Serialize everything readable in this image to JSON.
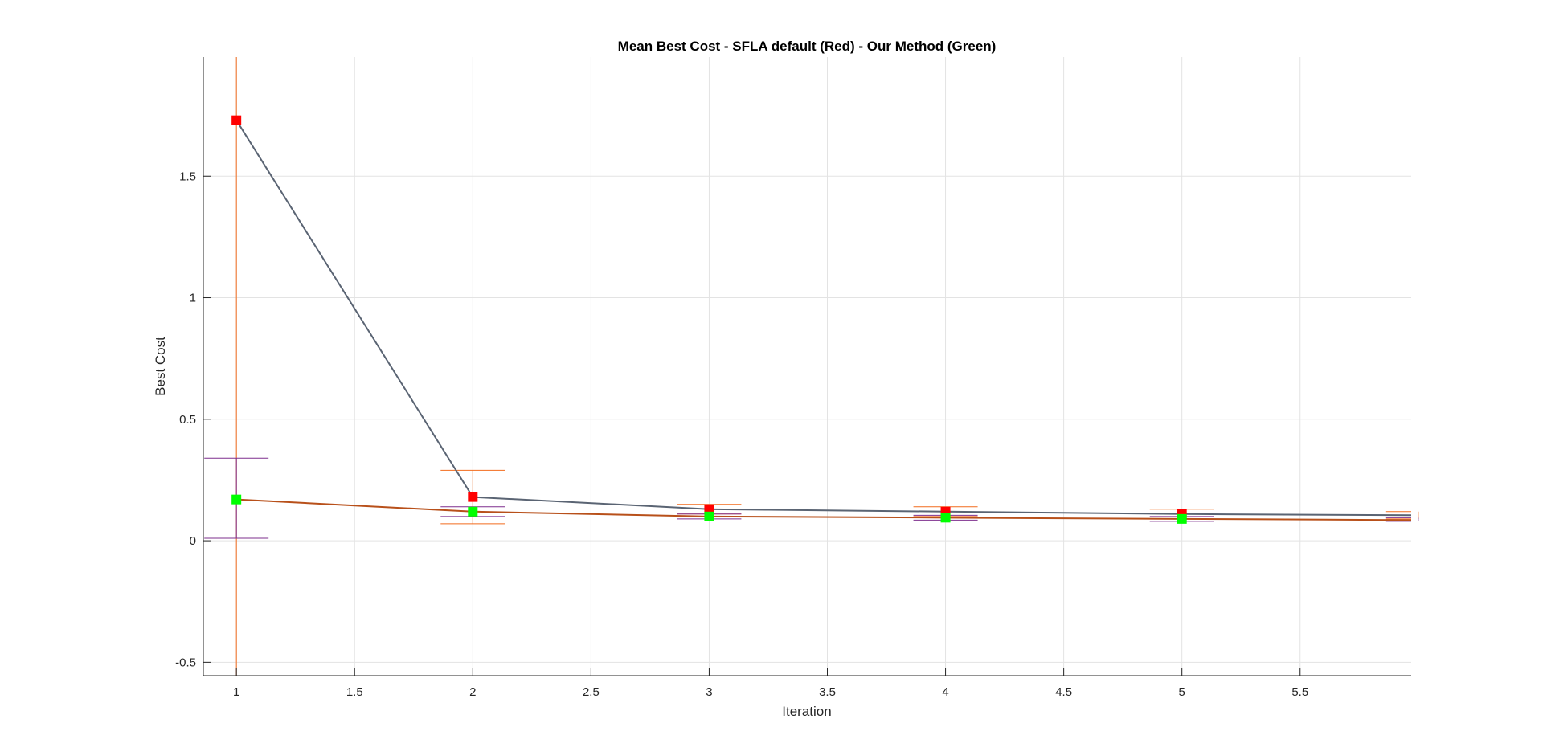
{
  "chart_data": {
    "type": "line",
    "title": "Mean Best Cost - SFLA default (Red) - Our Method (Green)",
    "xlabel": "Iteration",
    "ylabel": "Best Cost",
    "xlim": [
      0.86,
      5.97
    ],
    "ylim": [
      -0.555,
      1.99
    ],
    "xticks": [
      1,
      1.5,
      2,
      2.5,
      3,
      3.5,
      4,
      4.5,
      5,
      5.5
    ],
    "xtick_labels": [
      "1",
      "1.5",
      "2",
      "2.5",
      "3",
      "3.5",
      "4",
      "4.5",
      "5",
      "5.5"
    ],
    "yticks": [
      -0.5,
      0,
      0.5,
      1,
      1.5
    ],
    "ytick_labels": [
      "-0.5",
      "0",
      "0.5",
      "1",
      "1.5"
    ],
    "grid": true,
    "series": [
      {
        "x": [
          1,
          2,
          3,
          4,
          5,
          6
        ],
        "values": [
          1.73,
          0.18,
          0.13,
          0.12,
          0.11,
          0.105
        ],
        "marker_color": "#ff0000",
        "line_color": "#5a6473",
        "error_color": "#f26b1d",
        "error_low": [
          -1.0,
          0.07,
          0.11,
          0.1,
          0.09,
          0.09
        ],
        "error_high": [
          3.0,
          0.29,
          0.15,
          0.14,
          0.13,
          0.12
        ]
      },
      {
        "x": [
          1,
          2,
          3,
          4,
          5,
          6
        ],
        "values": [
          0.17,
          0.12,
          0.1,
          0.095,
          0.09,
          0.085
        ],
        "marker_color": "#00ff00",
        "line_color": "#b8501a",
        "error_color": "#7e2f8e",
        "error_low": [
          0.01,
          0.1,
          0.09,
          0.085,
          0.08,
          0.08
        ],
        "error_high": [
          0.34,
          0.14,
          0.11,
          0.105,
          0.1,
          0.095
        ]
      }
    ]
  }
}
